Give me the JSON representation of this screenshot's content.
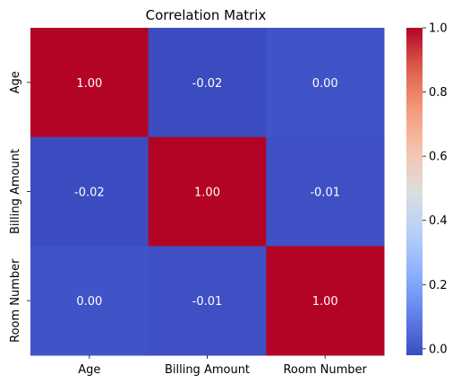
{
  "chart_data": {
    "type": "heatmap",
    "title": "Correlation Matrix",
    "x_labels": [
      "Age",
      "Billing Amount",
      "Room Number"
    ],
    "y_labels": [
      "Age",
      "Billing Amount",
      "Room Number"
    ],
    "values": [
      [
        1.0,
        -0.02,
        0.0
      ],
      [
        -0.02,
        1.0,
        -0.01
      ],
      [
        0.0,
        -0.01,
        1.0
      ]
    ],
    "annotations": [
      [
        "1.00",
        "-0.02",
        "0.00"
      ],
      [
        "-0.02",
        "1.00",
        "-0.01"
      ],
      [
        "0.00",
        "-0.01",
        "1.00"
      ]
    ],
    "colormap": "coolwarm",
    "color_range": [
      -0.02,
      1.0
    ],
    "colorbar": {
      "ticks": [
        0.0,
        0.2,
        0.4,
        0.6,
        0.8,
        1.0
      ],
      "tick_labels": [
        "0.0",
        "0.2",
        "0.4",
        "0.6",
        "0.8",
        "1.0"
      ],
      "placement": "right"
    },
    "annotation_color": "#ffffff"
  }
}
